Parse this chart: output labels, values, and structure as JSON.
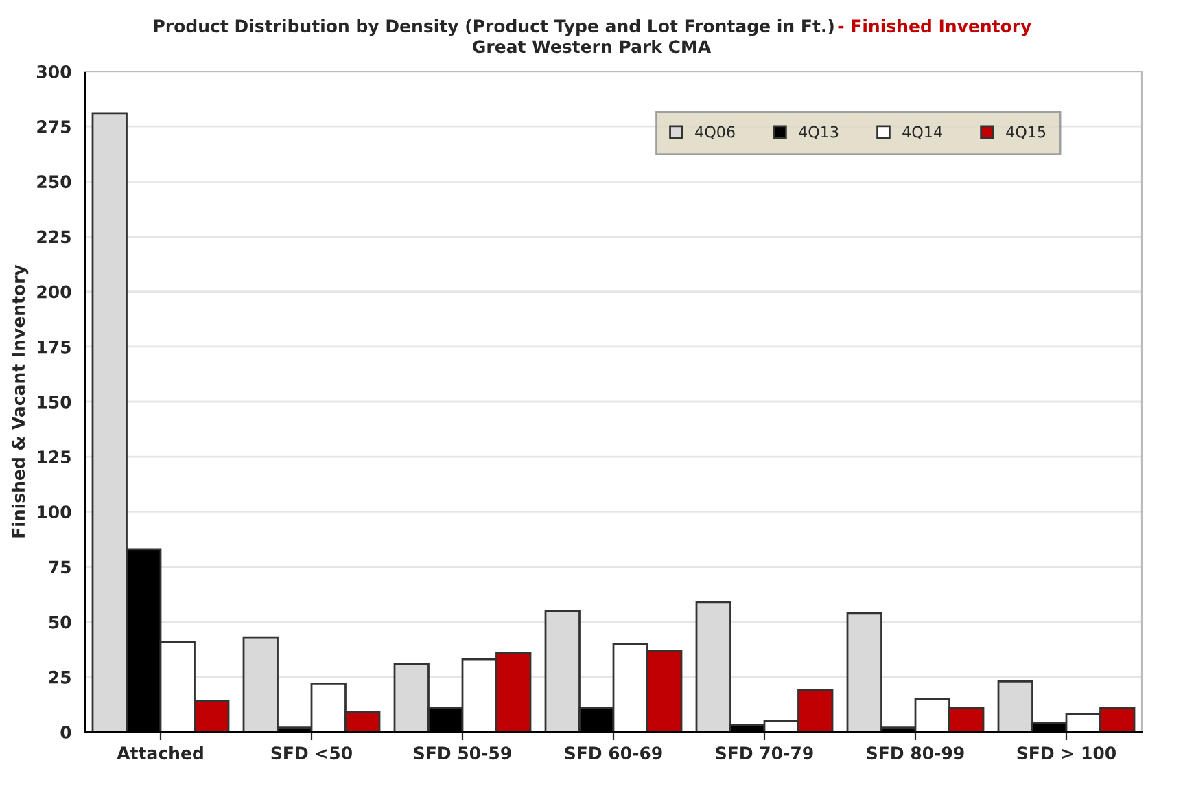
{
  "chart_data": {
    "type": "bar",
    "title": "Product Distribution by Density (Product Type and Lot Frontage in Ft.)",
    "subtitle": "Great Western Park CMA",
    "annotations": [
      "- Finished Inventory"
    ],
    "ylabel": "Finished & Vacant Inventory",
    "categories": [
      "Attached",
      "SFD <50",
      "SFD 50-59",
      "SFD 60-69",
      "SFD 70-79",
      "SFD 80-99",
      "SFD > 100"
    ],
    "series": [
      {
        "name": "4Q06",
        "color": "#d9d9d9",
        "values": [
          281,
          43,
          31,
          55,
          59,
          54,
          23
        ]
      },
      {
        "name": "4Q13",
        "color": "#000000",
        "values": [
          83,
          2,
          11,
          11,
          3,
          2,
          4
        ]
      },
      {
        "name": "4Q14",
        "color": "#ffffff",
        "values": [
          41,
          22,
          33,
          40,
          5,
          15,
          8
        ]
      },
      {
        "name": "4Q15",
        "color": "#c00000",
        "values": [
          14,
          9,
          36,
          37,
          19,
          11,
          11
        ]
      }
    ],
    "ylim": [
      0,
      300
    ],
    "yticks": [
      0,
      25,
      50,
      75,
      100,
      125,
      150,
      175,
      200,
      225,
      250,
      275,
      300
    ],
    "grid": "y",
    "legend": "top right"
  }
}
